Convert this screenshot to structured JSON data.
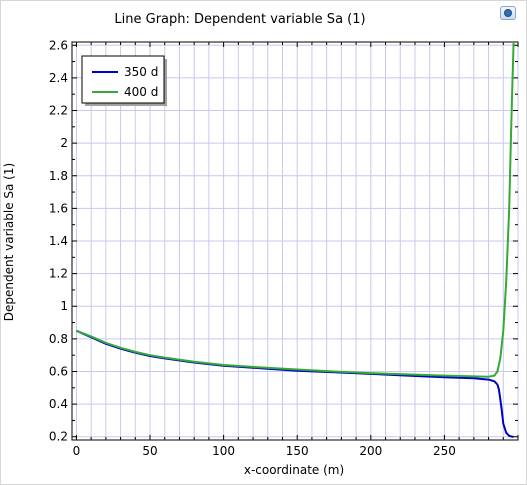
{
  "chart_data": {
    "type": "line",
    "title": "Line Graph: Dependent variable Sa (1)",
    "xlabel": "x-coordinate (m)",
    "ylabel": "Dependent variable Sa (1)",
    "xlim": [
      -3,
      300
    ],
    "ylim": [
      0.18,
      2.62
    ],
    "xticks": [
      0,
      50,
      100,
      150,
      200,
      250
    ],
    "yticks": [
      0.2,
      0.4,
      0.6,
      0.8,
      1,
      1.2,
      1.4,
      1.6,
      1.8,
      2,
      2.2,
      2.4,
      2.6
    ],
    "grid": true,
    "legend_position": "top-left",
    "series": [
      {
        "name": "350 d",
        "color": "#0000cc",
        "x": [
          0,
          10,
          20,
          30,
          40,
          50,
          60,
          80,
          100,
          125,
          150,
          175,
          200,
          225,
          250,
          270,
          280,
          284,
          286,
          287,
          288,
          289,
          290,
          292,
          294,
          296,
          297
        ],
        "y": [
          0.85,
          0.81,
          0.77,
          0.74,
          0.715,
          0.695,
          0.68,
          0.655,
          0.635,
          0.62,
          0.605,
          0.595,
          0.585,
          0.575,
          0.565,
          0.558,
          0.55,
          0.54,
          0.52,
          0.49,
          0.43,
          0.36,
          0.28,
          0.225,
          0.205,
          0.2,
          0.2
        ]
      },
      {
        "name": "400 d",
        "color": "#33aa33",
        "x": [
          0,
          10,
          20,
          30,
          40,
          50,
          60,
          80,
          100,
          125,
          150,
          175,
          200,
          225,
          250,
          270,
          280,
          284,
          286,
          288,
          290,
          292,
          294,
          295,
          296,
          297
        ],
        "y": [
          0.85,
          0.815,
          0.775,
          0.745,
          0.72,
          0.7,
          0.685,
          0.66,
          0.64,
          0.625,
          0.612,
          0.6,
          0.59,
          0.582,
          0.575,
          0.57,
          0.568,
          0.575,
          0.6,
          0.68,
          0.85,
          1.15,
          1.6,
          1.95,
          2.3,
          2.62
        ]
      }
    ]
  }
}
